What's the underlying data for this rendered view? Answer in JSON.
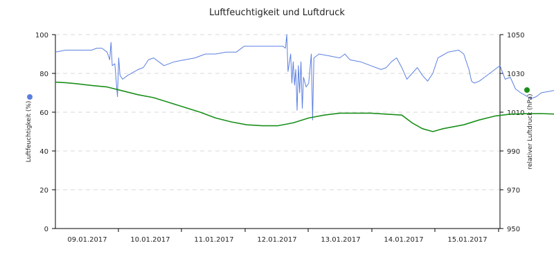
{
  "chart_data": {
    "type": "line",
    "title": "Luftfeuchtigkeit und Luftdruck",
    "ylabel_left": "Luftfeuchtigkeit (%)",
    "ylabel_right": "relativer Luftdruck (hPa)",
    "x_start": "2017-01-08T16:00",
    "x_end": "2017-01-15T20:00",
    "x_tick_labels": [
      "09.01.2017",
      "10.01.2017",
      "11.01.2017",
      "12.01.2017",
      "13.01.2017",
      "14.01.2017",
      "15.01.2017"
    ],
    "ylim_left": [
      0,
      100
    ],
    "yticks_left": [
      0,
      20,
      40,
      60,
      80,
      100
    ],
    "ylim_right": [
      950,
      1050
    ],
    "yticks_right": [
      950,
      970,
      990,
      1010,
      1030,
      1050
    ],
    "grid": true,
    "colors": {
      "humidity": "#5b7fe0",
      "pressure": "#1a8f1a"
    },
    "series": [
      {
        "axis": "left",
        "color": "#5b7fe0",
        "points": [
          [
            "2017-01-08T16:00",
            91
          ],
          [
            "2017-01-08T20:00",
            92
          ],
          [
            "2017-01-09T06:00",
            92
          ],
          [
            "2017-01-09T08:00",
            93
          ],
          [
            "2017-01-09T10:00",
            93
          ],
          [
            "2017-01-09T12:00",
            91
          ],
          [
            "2017-01-09T13:00",
            87
          ],
          [
            "2017-01-09T13:30",
            96
          ],
          [
            "2017-01-09T14:00",
            84
          ],
          [
            "2017-01-09T15:00",
            85
          ],
          [
            "2017-01-09T16:00",
            68
          ],
          [
            "2017-01-09T16:30",
            88
          ],
          [
            "2017-01-09T17:00",
            79
          ],
          [
            "2017-01-09T18:00",
            77
          ],
          [
            "2017-01-09T20:00",
            79
          ],
          [
            "2017-01-10T00:00",
            82
          ],
          [
            "2017-01-10T02:00",
            83
          ],
          [
            "2017-01-10T04:00",
            87
          ],
          [
            "2017-01-10T06:00",
            88
          ],
          [
            "2017-01-10T08:00",
            86
          ],
          [
            "2017-01-10T10:00",
            84
          ],
          [
            "2017-01-10T14:00",
            86
          ],
          [
            "2017-01-10T18:00",
            87
          ],
          [
            "2017-01-10T22:00",
            88
          ],
          [
            "2017-01-11T02:00",
            90
          ],
          [
            "2017-01-11T06:00",
            90
          ],
          [
            "2017-01-11T10:00",
            91
          ],
          [
            "2017-01-11T14:00",
            91
          ],
          [
            "2017-01-11T17:00",
            94
          ],
          [
            "2017-01-12T02:00",
            94
          ],
          [
            "2017-01-12T08:00",
            94
          ],
          [
            "2017-01-12T09:00",
            93
          ],
          [
            "2017-01-12T09:30",
            100
          ],
          [
            "2017-01-12T10:00",
            81
          ],
          [
            "2017-01-12T11:00",
            90
          ],
          [
            "2017-01-12T11:30",
            75
          ],
          [
            "2017-01-12T12:00",
            86
          ],
          [
            "2017-01-12T12:30",
            74
          ],
          [
            "2017-01-12T13:00",
            82
          ],
          [
            "2017-01-12T13:30",
            61
          ],
          [
            "2017-01-12T14:00",
            84
          ],
          [
            "2017-01-12T14:30",
            70
          ],
          [
            "2017-01-12T15:00",
            86
          ],
          [
            "2017-01-12T15:30",
            62
          ],
          [
            "2017-01-12T16:00",
            78
          ],
          [
            "2017-01-12T17:00",
            73
          ],
          [
            "2017-01-12T18:00",
            75
          ],
          [
            "2017-01-12T19:00",
            90
          ],
          [
            "2017-01-12T19:30",
            56
          ],
          [
            "2017-01-12T20:00",
            88
          ],
          [
            "2017-01-12T22:00",
            90
          ],
          [
            "2017-01-13T02:00",
            89
          ],
          [
            "2017-01-13T06:00",
            88
          ],
          [
            "2017-01-13T08:00",
            90
          ],
          [
            "2017-01-13T10:00",
            87
          ],
          [
            "2017-01-13T14:00",
            86
          ],
          [
            "2017-01-13T18:00",
            84
          ],
          [
            "2017-01-13T22:00",
            82
          ],
          [
            "2017-01-14T00:00",
            83
          ],
          [
            "2017-01-14T02:00",
            86
          ],
          [
            "2017-01-14T04:00",
            88
          ],
          [
            "2017-01-14T06:00",
            83
          ],
          [
            "2017-01-14T08:00",
            77
          ],
          [
            "2017-01-14T10:00",
            80
          ],
          [
            "2017-01-14T12:00",
            83
          ],
          [
            "2017-01-14T14:00",
            79
          ],
          [
            "2017-01-14T16:00",
            76
          ],
          [
            "2017-01-14T18:00",
            80
          ],
          [
            "2017-01-14T20:00",
            88
          ],
          [
            "2017-01-15T00:00",
            91
          ],
          [
            "2017-01-15T04:00",
            92
          ],
          [
            "2017-01-15T06:00",
            90
          ],
          [
            "2017-01-15T08:00",
            82
          ],
          [
            "2017-01-15T09:00",
            76
          ],
          [
            "2017-01-15T10:00",
            75
          ],
          [
            "2017-01-15T12:00",
            76
          ],
          [
            "2017-01-15T14:00",
            78
          ],
          [
            "2017-01-15T16:00",
            80
          ],
          [
            "2017-01-15T18:00",
            82
          ],
          [
            "2017-01-15T20:00",
            84
          ],
          [
            "2017-01-15T22:00",
            77
          ],
          [
            "2017-01-16T00:00",
            78
          ],
          [
            "2017-01-16T01:00",
            75
          ],
          [
            "2017-01-16T02:00",
            72
          ],
          [
            "2017-01-16T04:00",
            70
          ],
          [
            "2017-01-16T08:00",
            67
          ],
          [
            "2017-01-16T10:00",
            68
          ],
          [
            "2017-01-16T12:00",
            70
          ],
          [
            "2017-01-16T16:00",
            71
          ],
          [
            "2017-01-16T20:00",
            72
          ],
          [
            "2017-01-17T00:00",
            73
          ],
          [
            "2017-01-17T04:00",
            72
          ],
          [
            "2017-01-17T06:00",
            71
          ],
          [
            "2017-01-17T08:00",
            78
          ],
          [
            "2017-01-17T09:00",
            72
          ],
          [
            "2017-01-17T10:00",
            75
          ],
          [
            "2017-01-17T12:00",
            78
          ],
          [
            "2017-01-17T14:00",
            82
          ],
          [
            "2017-01-17T16:00",
            82
          ],
          [
            "2017-01-17T18:00",
            80
          ],
          [
            "2017-01-17T20:00",
            76
          ],
          [
            "2017-01-18T00:00",
            76
          ],
          [
            "2017-01-18T02:00",
            75
          ],
          [
            "2017-01-18T04:00",
            78
          ],
          [
            "2017-01-18T06:00",
            88
          ],
          [
            "2017-01-18T08:00",
            91
          ],
          [
            "2017-01-18T12:00",
            90
          ],
          [
            "2017-01-18T16:00",
            89
          ],
          [
            "2017-01-18T20:00",
            88
          ],
          [
            "2017-01-19T00:00",
            87
          ],
          [
            "2017-01-19T04:00",
            86
          ],
          [
            "2017-01-19T08:00",
            84
          ],
          [
            "2017-01-19T10:00",
            81
          ],
          [
            "2017-01-19T12:00",
            84
          ],
          [
            "2017-01-19T14:00",
            80
          ],
          [
            "2017-01-19T16:00",
            84
          ],
          [
            "2017-01-19T20:00",
            89
          ],
          [
            "2017-01-20T00:00",
            88
          ],
          [
            "2017-01-20T04:00",
            88
          ],
          [
            "2017-01-20T08:00",
            89
          ],
          [
            "2017-01-20T12:00",
            88
          ],
          [
            "2017-01-20T16:00",
            87
          ],
          [
            "2017-01-20T20:00",
            86
          ],
          [
            "2017-01-21T00:00",
            88
          ],
          [
            "2017-01-21T02:00",
            80
          ],
          [
            "2017-01-21T04:00",
            73
          ],
          [
            "2017-01-21T06:00",
            75
          ],
          [
            "2017-01-21T08:00",
            78
          ],
          [
            "2017-01-21T10:00",
            80
          ],
          [
            "2017-01-21T12:00",
            85
          ],
          [
            "2017-01-21T14:00",
            87
          ],
          [
            "2017-01-21T16:00",
            86
          ],
          [
            "2017-01-21T20:00",
            86
          ],
          [
            "2017-01-22T00:00",
            86
          ],
          [
            "2017-01-22T04:00",
            87
          ]
        ]
      },
      {
        "axis": "right",
        "color": "#1a8f1a",
        "points": [
          [
            "2017-01-08T16:00",
            1025.5
          ],
          [
            "2017-01-08T20:00",
            1025.2
          ],
          [
            "2017-01-09T00:00",
            1024.7
          ],
          [
            "2017-01-09T06:00",
            1023.8
          ],
          [
            "2017-01-09T12:00",
            1023.0
          ],
          [
            "2017-01-09T18:00",
            1021.0
          ],
          [
            "2017-01-10T00:00",
            1019.0
          ],
          [
            "2017-01-10T06:00",
            1017.5
          ],
          [
            "2017-01-10T12:00",
            1015.0
          ],
          [
            "2017-01-10T18:00",
            1012.5
          ],
          [
            "2017-01-11T00:00",
            1010.0
          ],
          [
            "2017-01-11T06:00",
            1007.0
          ],
          [
            "2017-01-11T12:00",
            1005.0
          ],
          [
            "2017-01-11T18:00",
            1003.5
          ],
          [
            "2017-01-12T00:00",
            1003.0
          ],
          [
            "2017-01-12T06:00",
            1003.0
          ],
          [
            "2017-01-12T12:00",
            1004.5
          ],
          [
            "2017-01-12T18:00",
            1007.0
          ],
          [
            "2017-01-13T00:00",
            1008.5
          ],
          [
            "2017-01-13T06:00",
            1009.5
          ],
          [
            "2017-01-13T12:00",
            1009.5
          ],
          [
            "2017-01-13T18:00",
            1009.5
          ],
          [
            "2017-01-14T00:00",
            1009.0
          ],
          [
            "2017-01-14T06:00",
            1008.5
          ],
          [
            "2017-01-14T10:00",
            1004.5
          ],
          [
            "2017-01-14T14:00",
            1001.5
          ],
          [
            "2017-01-14T18:00",
            1000.0
          ],
          [
            "2017-01-14T22:00",
            1001.5
          ],
          [
            "2017-01-15T06:00",
            1003.5
          ],
          [
            "2017-01-15T12:00",
            1006.0
          ],
          [
            "2017-01-15T18:00",
            1008.0
          ],
          [
            "2017-01-16T00:00",
            1009.0
          ],
          [
            "2017-01-16T06:00",
            1009.2
          ],
          [
            "2017-01-16T12:00",
            1009.3
          ],
          [
            "2017-01-16T18:00",
            1009.0
          ],
          [
            "2017-01-17T00:00",
            1006.0
          ],
          [
            "2017-01-17T06:00",
            1002.0
          ],
          [
            "2017-01-17T12:00",
            997.0
          ],
          [
            "2017-01-17T18:00",
            992.0
          ],
          [
            "2017-01-18T00:00",
            988.0
          ],
          [
            "2017-01-18T04:00",
            985.0
          ],
          [
            "2017-01-18T08:00",
            986.5
          ],
          [
            "2017-01-18T12:00",
            990.5
          ],
          [
            "2017-01-18T18:00",
            994.0
          ],
          [
            "2017-01-19T00:00",
            996.5
          ],
          [
            "2017-01-19T06:00",
            997.5
          ],
          [
            "2017-01-19T12:00",
            998.0
          ],
          [
            "2017-01-19T18:00",
            999.0
          ],
          [
            "2017-01-20T00:00",
            1000.5
          ],
          [
            "2017-01-20T06:00",
            1000.5
          ],
          [
            "2017-01-20T12:00",
            999.5
          ],
          [
            "2017-01-20T18:00",
            999.5
          ],
          [
            "2017-01-21T00:00",
            1001.0
          ],
          [
            "2017-01-21T06:00",
            1003.0
          ],
          [
            "2017-01-21T12:00",
            1005.0
          ],
          [
            "2017-01-21T18:00",
            1007.0
          ],
          [
            "2017-01-22T00:00",
            1008.5
          ],
          [
            "2017-01-22T06:00",
            1009.5
          ],
          [
            "2017-01-22T12:00",
            1010.5
          ],
          [
            "2017-01-22T18:00",
            1011.0
          ],
          [
            "2017-01-23T00:00",
            1011.5
          ],
          [
            "2017-01-23T06:00",
            1012.5
          ],
          [
            "2017-01-23T12:00",
            1014.0
          ],
          [
            "2017-01-23T18:00",
            1015.0
          ],
          [
            "2017-01-24T00:00",
            1015.5
          ],
          [
            "2017-01-24T06:00",
            1016.0
          ],
          [
            "2017-01-24T12:00",
            1016.5
          ],
          [
            "2017-01-24T18:00",
            1016.3
          ],
          [
            "2017-01-25T00:00",
            1016.3
          ],
          [
            "2017-01-25T06:00",
            1016.2
          ]
        ]
      }
    ]
  }
}
